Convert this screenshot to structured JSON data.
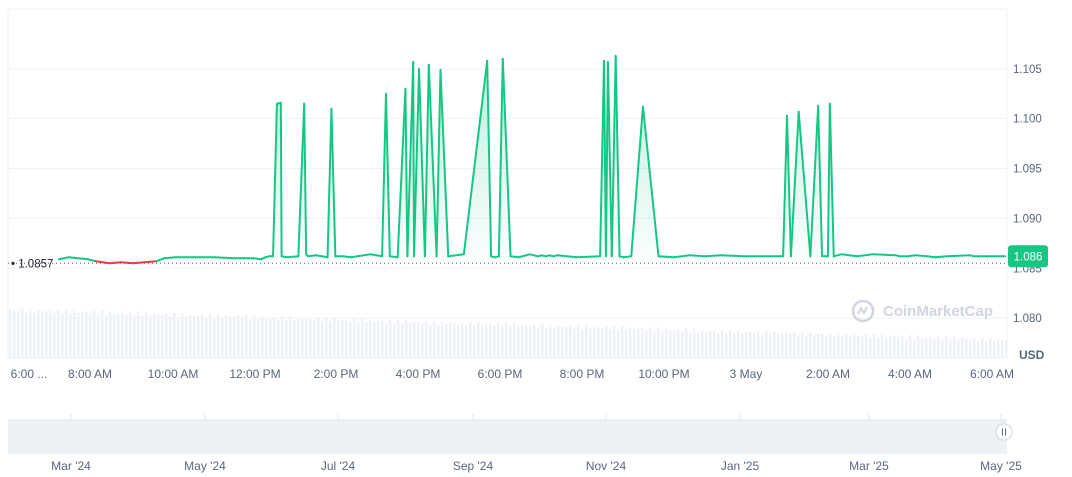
{
  "chart_data": {
    "type": "area",
    "title": "",
    "xlabel": "",
    "ylabel": "",
    "unit": "USD",
    "ylim": [
      1.076,
      1.111
    ],
    "y_ticks": [
      "1.080",
      "1.085",
      "1.090",
      "1.095",
      "1.100",
      "1.105"
    ],
    "x_tick_labels": [
      "6:00 ...",
      "8:00 AM",
      "10:00 AM",
      "12:00 PM",
      "2:00 PM",
      "4:00 PM",
      "6:00 PM",
      "8:00 PM",
      "10:00 PM",
      "3 May",
      "2:00 AM",
      "4:00 AM",
      "6:00 AM"
    ],
    "reference_price": 1.0857,
    "reference_label": "1.0857",
    "current_price": 1.0862,
    "current_label": "1.086",
    "grid": true,
    "colors": {
      "up": "#16c784",
      "down": "#ea3943",
      "grid": "#eff2f5",
      "badge": "#16c784"
    },
    "series": [
      {
        "time_hours": [
          0.0,
          0.25,
          0.5,
          0.75,
          0.95,
          1.3,
          1.6,
          1.9,
          2.2,
          2.5,
          2.7,
          3.0,
          3.5,
          4.0,
          4.5,
          5.0,
          5.2,
          5.3,
          5.4,
          5.5,
          5.6,
          5.7,
          5.72,
          5.85,
          6.15,
          6.3,
          6.35,
          6.4,
          6.6,
          6.9,
          7.0,
          7.1,
          7.3,
          7.5,
          8.0,
          8.3,
          8.4,
          8.5,
          8.7,
          8.9,
          8.95,
          9.1,
          9.12,
          9.25,
          9.4,
          9.5,
          9.7,
          9.8,
          10.0,
          10.4,
          11.0,
          11.1,
          11.2,
          11.3,
          11.4,
          11.6,
          11.8,
          12.0,
          12.1,
          12.3,
          12.4,
          12.5,
          12.6,
          12.7,
          12.8,
          13.3,
          13.9,
          14.0,
          14.05,
          14.1,
          14.2,
          14.3,
          14.4,
          14.5,
          14.7,
          15.0,
          15.4,
          15.8,
          16.2,
          16.6,
          17.0,
          17.6,
          18.6,
          18.7,
          18.8,
          19.0,
          19.3,
          19.5,
          19.6,
          19.7,
          19.75,
          19.8,
          19.9,
          20.1,
          20.5,
          20.9,
          21.5,
          21.6,
          21.8,
          22.0,
          22.3,
          22.5,
          22.8,
          23.4,
          23.5,
          23.6,
          23.7,
          23.8,
          23.9,
          24.3
        ],
        "price": [
          1.0859,
          1.0861,
          1.086,
          1.0859,
          1.0857,
          1.0855,
          1.0856,
          1.0855,
          1.0856,
          1.0857,
          1.086,
          1.0861,
          1.0861,
          1.0861,
          1.086,
          1.086,
          1.0859,
          1.0861,
          1.0862,
          1.0862,
          1.1015,
          1.1016,
          1.0862,
          1.0861,
          1.0862,
          1.1015,
          1.0864,
          1.0862,
          1.0863,
          1.0861,
          1.101,
          1.0862,
          1.0862,
          1.0861,
          1.0864,
          1.0862,
          1.1025,
          1.0862,
          1.0861,
          1.103,
          1.0862,
          1.1057,
          1.0862,
          1.105,
          1.0862,
          1.1054,
          1.0862,
          1.1049,
          1.0862,
          1.0864,
          1.1058,
          1.0862,
          1.0861,
          1.0862,
          1.106,
          1.0862,
          1.0861,
          1.0863,
          1.0864,
          1.0862,
          1.0863,
          1.0862,
          1.0863,
          1.0862,
          1.0863,
          1.0861,
          1.0862,
          1.1058,
          1.0862,
          1.1057,
          1.0862,
          1.1063,
          1.0862,
          1.0861,
          1.0862,
          1.1012,
          1.0862,
          1.0861,
          1.0863,
          1.0862,
          1.0863,
          1.0862,
          1.0862,
          1.1003,
          1.0862,
          1.1007,
          1.0862,
          1.1013,
          1.0862,
          1.0862,
          1.0862,
          1.1015,
          1.0862,
          1.0864,
          1.0862,
          1.0864,
          1.0863,
          1.0862,
          1.0862,
          1.0863,
          1.0862,
          1.0861,
          1.0862,
          1.0863,
          1.0862,
          1.0862,
          1.0862,
          1.0862,
          1.0862,
          1.0862
        ]
      }
    ],
    "navigator": {
      "labels": [
        "Mar '24",
        "May '24",
        "Jul '24",
        "Sep '24",
        "Nov '24",
        "Jan '25",
        "Mar '25",
        "May '25"
      ],
      "handle_icon": "pause-handle-icon"
    },
    "watermark": "CoinMarketCap",
    "watermark_icon": "coinmarketcap-logo-icon"
  }
}
